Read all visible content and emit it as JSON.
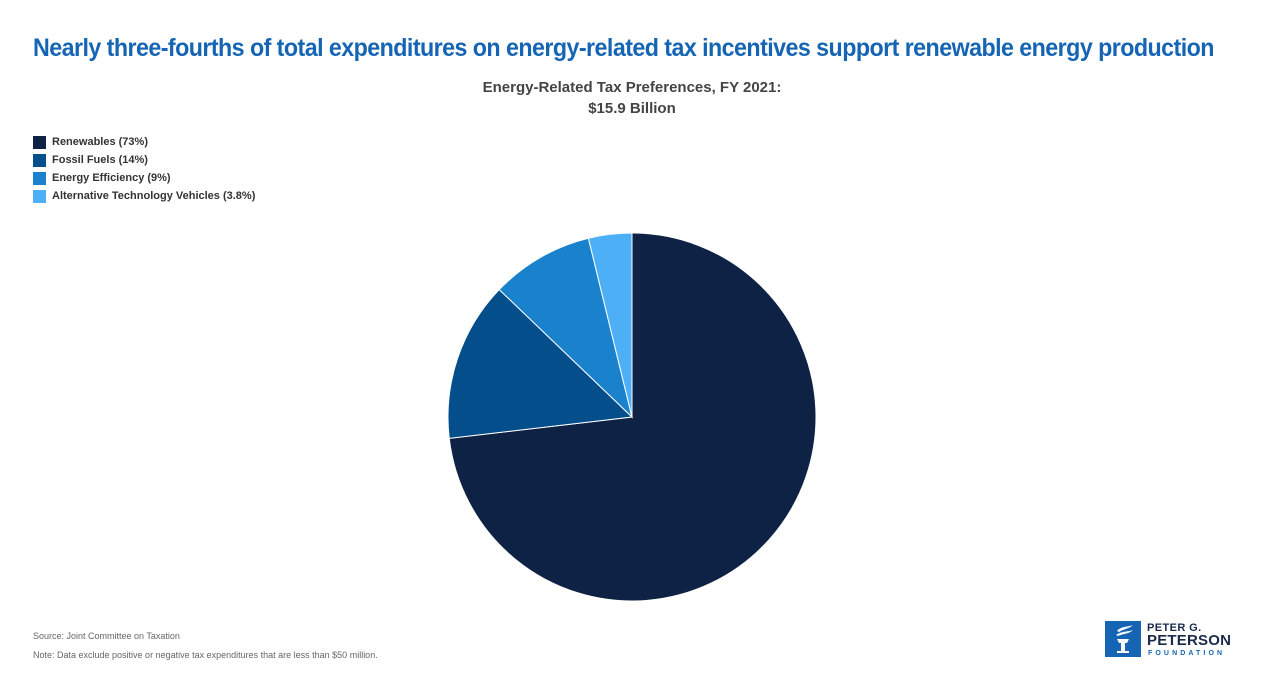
{
  "headline": "Nearly three-fourths of total expenditures on energy-related tax incentives support renewable energy production",
  "chart_data": {
    "type": "pie",
    "title_lines": [
      "Energy-Related Tax Preferences, FY 2021:",
      "$15.9 Billion"
    ],
    "legend_position": "top-left",
    "slices": [
      {
        "label": "Renewables (73%)",
        "value": 73,
        "color": "#0e2245"
      },
      {
        "label": "Fossil Fuels (14%)",
        "value": 14,
        "color": "#054e8c"
      },
      {
        "label": "Energy Efficiency (9%)",
        "value": 9,
        "color": "#1a81cd"
      },
      {
        "label": "Alternative Technology Vehicles (3.8%)",
        "value": 3.8,
        "color": "#4db0f7"
      }
    ]
  },
  "footer": {
    "source": "Source: Joint Committee on Taxation",
    "note": "Note: Data exclude positive or negative tax expenditures that are less than $50 million."
  },
  "logo": {
    "line1": "PETER G.",
    "line2": "PETERSON",
    "line3": "FOUNDATION",
    "icon": "torch-icon",
    "color": "#1565b4"
  }
}
